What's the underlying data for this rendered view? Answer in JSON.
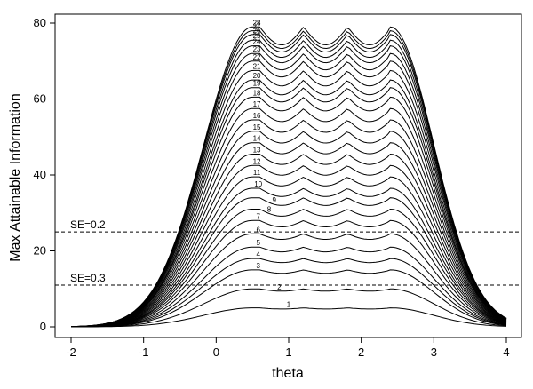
{
  "chart_data": {
    "type": "line",
    "title": "",
    "xlabel": "theta",
    "ylabel": "Max Attainable Information",
    "xlim": [
      -2,
      4
    ],
    "ylim": [
      0,
      80
    ],
    "xticks": [
      -2,
      -1,
      0,
      1,
      2,
      3,
      4
    ],
    "yticks": [
      0,
      20,
      40,
      60,
      80
    ],
    "grid": false,
    "legend": "none",
    "color": "#000000",
    "x": [
      -2,
      -1.5,
      -1,
      -0.5,
      0,
      0.3,
      0.6,
      0.9,
      1.2,
      1.4,
      1.6,
      1.8,
      2.0,
      2.15,
      2.3,
      2.45,
      2.6,
      2.8,
      3.0,
      3.3,
      3.6,
      4.0
    ],
    "series_count": 28,
    "series_max_values": [
      5,
      10,
      15,
      18,
      21,
      24.5,
      28,
      31,
      34,
      36.5,
      39.5,
      42.5,
      45.5,
      48.5,
      51.5,
      54.5,
      57.5,
      60.5,
      63,
      65,
      67.5,
      70,
      72,
      74,
      75.5,
      77,
      78,
      79
    ],
    "reference_lines": [
      {
        "y": 25,
        "label": "SE=0.2"
      },
      {
        "y": 11,
        "label": "SE=0.3"
      }
    ]
  }
}
